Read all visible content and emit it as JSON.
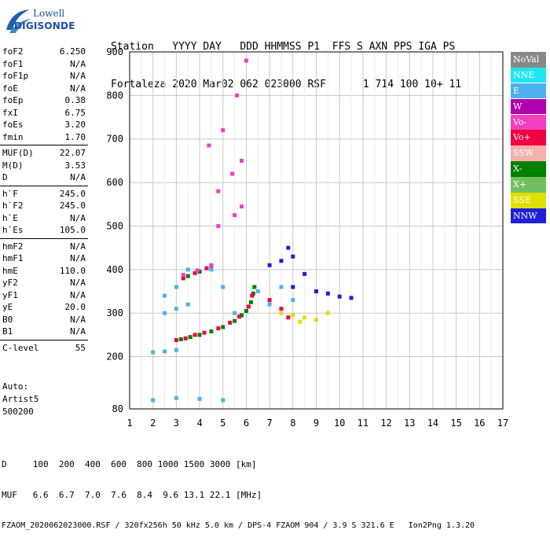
{
  "logo": {
    "line1": "Lowell",
    "line2": "DIGISONDE"
  },
  "header": {
    "line1": "Station   YYYY DAY   DDD HHMMSS P1  FFS S AXN PPS IGA PS",
    "line2": "Fortaleza 2020 Mar02 062 023000 RSF      1 714 100 10+ 11"
  },
  "params": {
    "group1": [
      {
        "key": "foF2",
        "value": "6.250"
      },
      {
        "key": "foF1",
        "value": "N/A"
      },
      {
        "key": "foF1p",
        "value": "N/A"
      },
      {
        "key": "foE",
        "value": "N/A"
      },
      {
        "key": "foEp",
        "value": "0.38"
      },
      {
        "key": "fxI",
        "value": "6.75"
      },
      {
        "key": "foEs",
        "value": "3.20"
      },
      {
        "key": "fmin",
        "value": "1.70"
      }
    ],
    "group2": [
      {
        "key": "MUF(D)",
        "value": "22.07"
      },
      {
        "key": "M(D)",
        "value": "3.53"
      },
      {
        "key": "D",
        "value": "N/A"
      }
    ],
    "group3": [
      {
        "key": "h`F",
        "value": "245.0"
      },
      {
        "key": "h`F2",
        "value": "245.0"
      },
      {
        "key": "h`E",
        "value": "N/A"
      },
      {
        "key": "h`Es",
        "value": "105.0"
      }
    ],
    "group4": [
      {
        "key": "hmF2",
        "value": "N/A"
      },
      {
        "key": "hmF1",
        "value": "N/A"
      },
      {
        "key": "hmE",
        "value": "110.0"
      },
      {
        "key": "yF2",
        "value": "N/A"
      },
      {
        "key": "yF1",
        "value": "N/A"
      },
      {
        "key": "yE",
        "value": "20.0"
      },
      {
        "key": "B0",
        "value": "N/A"
      },
      {
        "key": "B1",
        "value": "N/A"
      }
    ],
    "group5": [
      {
        "key": "C-level",
        "value": "55"
      }
    ]
  },
  "auto": {
    "line1": "Auto:",
    "line2": "Artist5",
    "line3": "500200"
  },
  "legend": [
    {
      "label": "NoVal",
      "color": "#888888"
    },
    {
      "label": "NNE",
      "color": "#1EE6F0"
    },
    {
      "label": "E",
      "color": "#4DB0F0"
    },
    {
      "label": "W",
      "color": "#B000B0"
    },
    {
      "label": "Vo-",
      "color": "#F040C0"
    },
    {
      "label": "Vo+",
      "color": "#F00040"
    },
    {
      "label": "SSW",
      "color": "#F5B0B0"
    },
    {
      "label": "X-",
      "color": "#008000"
    },
    {
      "label": "X+",
      "color": "#70C060"
    },
    {
      "label": "SSE",
      "color": "#E0E000"
    },
    {
      "label": "NNW",
      "color": "#2020D8"
    }
  ],
  "bottom": {
    "line1": "D     100  200  400  600  800 1000 1500 3000 [km]",
    "line2": "MUF   6.6  6.7  7.0  7.6  8.4  9.6 13.1 22.1 [MHz]",
    "line3": "FZAOM_2020062023000.RSF / 320fx256h 50 kHz 5.0 km / DPS-4 FZAOM 904 / 3.9 S 321.6 E   Ion2Png 1.3.20"
  },
  "chart_data": {
    "type": "scatter",
    "x_axis": {
      "range": [
        1,
        17
      ],
      "ticks": [
        "1",
        "2",
        "3",
        "4",
        "5",
        "6",
        "7",
        "8",
        "9",
        "10",
        "11",
        "12",
        "13",
        "14",
        "15",
        "16",
        "17"
      ]
    },
    "y_axis": {
      "range": [
        80,
        900
      ],
      "ticks": [
        "80",
        "200",
        "300",
        "400",
        "500",
        "600",
        "700",
        "800",
        "900"
      ]
    },
    "grid": true,
    "series": [
      {
        "name": "X-",
        "points": [
          [
            3.2,
            240
          ],
          [
            3.6,
            245
          ],
          [
            4.0,
            250
          ],
          [
            4.5,
            258
          ],
          [
            5.0,
            268
          ],
          [
            5.5,
            282
          ],
          [
            5.8,
            295
          ],
          [
            6.0,
            305
          ],
          [
            6.2,
            325
          ],
          [
            6.3,
            345
          ],
          [
            6.35,
            360
          ],
          [
            3.5,
            385
          ],
          [
            4.0,
            395
          ],
          [
            4.5,
            405
          ]
        ]
      },
      {
        "name": "Vo+",
        "points": [
          [
            3.0,
            238
          ],
          [
            3.4,
            242
          ],
          [
            3.8,
            250
          ],
          [
            4.2,
            255
          ],
          [
            4.8,
            265
          ],
          [
            5.3,
            278
          ],
          [
            5.7,
            292
          ],
          [
            6.1,
            315
          ],
          [
            6.25,
            340
          ],
          [
            7.0,
            330
          ],
          [
            7.5,
            310
          ],
          [
            7.8,
            290
          ],
          [
            3.3,
            380
          ],
          [
            3.8,
            392
          ],
          [
            4.3,
            403
          ]
        ]
      },
      {
        "name": "Vo-",
        "points": [
          [
            3.3,
            388
          ],
          [
            3.9,
            398
          ],
          [
            4.5,
            410
          ],
          [
            4.8,
            500
          ],
          [
            5.5,
            525
          ],
          [
            5.8,
            545
          ],
          [
            4.8,
            580
          ],
          [
            5.4,
            620
          ],
          [
            5.8,
            650
          ],
          [
            4.4,
            685
          ],
          [
            5.0,
            720
          ],
          [
            5.6,
            800
          ],
          [
            6.0,
            880
          ]
        ]
      },
      {
        "name": "E",
        "points": [
          [
            2.0,
            210
          ],
          [
            2.5,
            212
          ],
          [
            3.0,
            215
          ],
          [
            2.5,
            300
          ],
          [
            3.0,
            310
          ],
          [
            3.5,
            320
          ],
          [
            2.5,
            340
          ],
          [
            3.0,
            360
          ],
          [
            3.5,
            400
          ],
          [
            4.5,
            400
          ],
          [
            5.0,
            360
          ],
          [
            5.5,
            300
          ],
          [
            6.5,
            350
          ],
          [
            7.0,
            320
          ],
          [
            7.5,
            360
          ],
          [
            8.0,
            330
          ],
          [
            2.0,
            100
          ],
          [
            3.0,
            105
          ],
          [
            4.0,
            103
          ],
          [
            5.0,
            100
          ]
        ]
      },
      {
        "name": "NNW",
        "points": [
          [
            7.0,
            410
          ],
          [
            7.5,
            420
          ],
          [
            8.0,
            430
          ],
          [
            8.5,
            390
          ],
          [
            9.0,
            350
          ],
          [
            9.5,
            345
          ],
          [
            10.0,
            338
          ],
          [
            10.5,
            335
          ],
          [
            8.0,
            360
          ],
          [
            7.8,
            450
          ]
        ]
      },
      {
        "name": "SSE",
        "points": [
          [
            7.5,
            300
          ],
          [
            8.0,
            295
          ],
          [
            8.5,
            290
          ],
          [
            9.0,
            285
          ],
          [
            9.5,
            300
          ],
          [
            8.3,
            280
          ]
        ]
      }
    ]
  }
}
